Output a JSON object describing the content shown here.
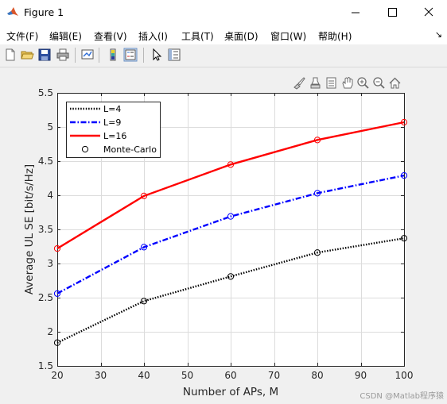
{
  "window": {
    "title": "Figure 1"
  },
  "menu": {
    "items": [
      "文件(F)",
      "编辑(E)",
      "查看(V)",
      "插入(I)",
      "工具(T)",
      "桌面(D)",
      "窗口(W)",
      "帮助(H)"
    ]
  },
  "toolbar": {
    "icons": [
      "new-figure-icon",
      "open-file-icon",
      "save-icon",
      "print-icon",
      "link-plot-icon",
      "colorbar-icon",
      "legend-icon",
      "pointer-icon",
      "property-inspector-icon"
    ]
  },
  "axes_toolbar": {
    "icons": [
      "brush-icon",
      "data-tips-icon",
      "export-icon",
      "pan-icon",
      "zoom-in-icon",
      "zoom-out-icon",
      "home-icon"
    ]
  },
  "chart_data": {
    "type": "line",
    "title": "",
    "xlabel": "Number of APs, M",
    "ylabel": "Average UL SE [bit/s/Hz]",
    "xlim": [
      20,
      100
    ],
    "ylim": [
      1.5,
      5.5
    ],
    "xticks": [
      20,
      30,
      40,
      50,
      60,
      70,
      80,
      90,
      100
    ],
    "yticks": [
      1.5,
      2,
      2.5,
      3,
      3.5,
      4,
      4.5,
      5,
      5.5
    ],
    "xtick_labels": [
      "20",
      "30",
      "40",
      "50",
      "60",
      "70",
      "80",
      "90",
      "100"
    ],
    "ytick_labels": [
      "1.5",
      "2",
      "2.5",
      "3",
      "3.5",
      "4",
      "4.5",
      "5",
      "5.5"
    ],
    "grid": true,
    "legend_position": "top-left",
    "x": [
      20,
      40,
      60,
      80,
      100
    ],
    "series": [
      {
        "name": "L=4",
        "values": [
          1.84,
          2.45,
          2.81,
          3.16,
          3.37
        ],
        "color": "#000000",
        "style": "dotted",
        "marker": "circle"
      },
      {
        "name": "L=9",
        "values": [
          2.56,
          3.24,
          3.69,
          4.03,
          4.29
        ],
        "color": "#0000ff",
        "style": "dashdot",
        "marker": "circle"
      },
      {
        "name": "L=16",
        "values": [
          3.22,
          3.99,
          4.45,
          4.81,
          5.07
        ],
        "color": "#ff0000",
        "style": "solid",
        "marker": "circle"
      }
    ],
    "marker_legend": "Monte-Carlo"
  },
  "watermark": "CSDN @Matlab程序猿"
}
